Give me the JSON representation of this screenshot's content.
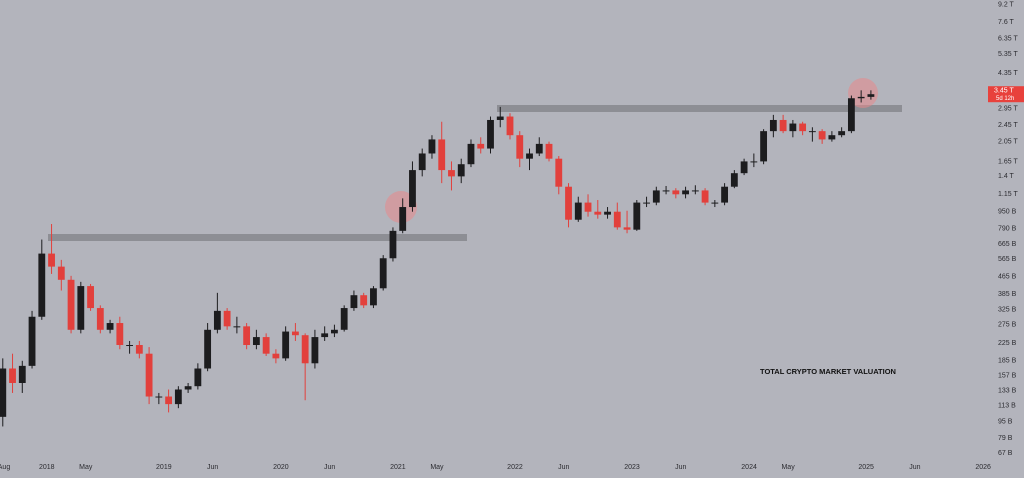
{
  "chart_data": {
    "type": "candlestick",
    "annotation": "TOTAL CRYPTO MARKET VALUATION",
    "up_color": "#1c1c1e",
    "down_color": "#e2403c",
    "log_scale": true,
    "x": [
      "2017-08",
      "2017-09",
      "2017-10",
      "2017-11",
      "2017-12",
      "2018-01",
      "2018-02",
      "2018-03",
      "2018-04",
      "2018-05",
      "2018-06",
      "2018-07",
      "2018-08",
      "2018-09",
      "2018-10",
      "2018-11",
      "2018-12",
      "2019-01",
      "2019-02",
      "2019-03",
      "2019-04",
      "2019-05",
      "2019-06",
      "2019-07",
      "2019-08",
      "2019-09",
      "2019-10",
      "2019-11",
      "2019-12",
      "2020-01",
      "2020-02",
      "2020-03",
      "2020-04",
      "2020-05",
      "2020-06",
      "2020-07",
      "2020-08",
      "2020-09",
      "2020-10",
      "2020-11",
      "2020-12",
      "2021-01",
      "2021-02",
      "2021-03",
      "2021-04",
      "2021-05",
      "2021-06",
      "2021-07",
      "2021-08",
      "2021-09",
      "2021-10",
      "2021-11",
      "2021-12",
      "2022-01",
      "2022-02",
      "2022-03",
      "2022-04",
      "2022-05",
      "2022-06",
      "2022-07",
      "2022-08",
      "2022-09",
      "2022-10",
      "2022-11",
      "2022-12",
      "2023-01",
      "2023-02",
      "2023-03",
      "2023-04",
      "2023-05",
      "2023-06",
      "2023-07",
      "2023-08",
      "2023-09",
      "2023-10",
      "2023-11",
      "2023-12",
      "2024-01",
      "2024-02",
      "2024-03",
      "2024-04",
      "2024-05",
      "2024-06",
      "2024-07",
      "2024-08",
      "2024-09",
      "2024-10",
      "2024-11",
      "2024-12",
      "2025-01"
    ],
    "open": [
      100,
      170,
      145,
      175,
      300,
      600,
      520,
      450,
      260,
      420,
      330,
      260,
      280,
      220,
      220,
      200,
      125,
      125,
      115,
      135,
      140,
      170,
      260,
      320,
      270,
      270,
      220,
      240,
      200,
      190,
      255,
      245,
      180,
      240,
      250,
      260,
      330,
      380,
      340,
      410,
      570,
      770,
      1000,
      1500,
      1800,
      2100,
      1500,
      1400,
      1600,
      2000,
      1900,
      2600,
      2700,
      2200,
      1700,
      1800,
      2000,
      1700,
      1250,
      870,
      1050,
      950,
      920,
      950,
      800,
      780,
      1050,
      1050,
      1200,
      1200,
      1150,
      1200,
      1200,
      1050,
      1050,
      1250,
      1450,
      1650,
      1650,
      2300,
      2600,
      2300,
      2500,
      2300,
      2300,
      2100,
      2200,
      2300,
      3300,
      3350
    ],
    "high": [
      190,
      200,
      185,
      320,
      700,
      830,
      560,
      470,
      440,
      430,
      340,
      290,
      300,
      230,
      230,
      215,
      130,
      135,
      140,
      145,
      180,
      280,
      390,
      330,
      300,
      280,
      260,
      250,
      210,
      270,
      280,
      250,
      260,
      270,
      275,
      340,
      400,
      390,
      420,
      590,
      800,
      1100,
      1650,
      1900,
      2200,
      2550,
      1650,
      1700,
      2100,
      2150,
      2700,
      3000,
      2800,
      2300,
      1900,
      2150,
      2050,
      1750,
      1300,
      1120,
      1150,
      1080,
      1000,
      1050,
      960,
      1080,
      1120,
      1250,
      1260,
      1230,
      1250,
      1270,
      1230,
      1080,
      1300,
      1500,
      1700,
      1800,
      2350,
      2750,
      2750,
      2600,
      2550,
      2400,
      2350,
      2300,
      2400,
      3400,
      3600,
      3600
    ],
    "low": [
      90,
      130,
      130,
      170,
      290,
      480,
      400,
      250,
      250,
      320,
      250,
      250,
      210,
      200,
      190,
      115,
      115,
      105,
      110,
      130,
      135,
      165,
      250,
      260,
      250,
      210,
      210,
      195,
      180,
      185,
      230,
      120,
      170,
      230,
      240,
      255,
      320,
      330,
      330,
      400,
      550,
      750,
      950,
      1400,
      1700,
      1300,
      1200,
      1300,
      1550,
      1800,
      1800,
      2400,
      2100,
      1550,
      1500,
      1750,
      1650,
      1150,
      800,
      850,
      900,
      880,
      880,
      780,
      750,
      770,
      1000,
      1020,
      1150,
      1100,
      1100,
      1150,
      1020,
      1000,
      1020,
      1230,
      1420,
      1550,
      1600,
      2150,
      2250,
      2150,
      2200,
      2050,
      2000,
      2050,
      2150,
      2250,
      3150,
      3250
    ],
    "close": [
      170,
      145,
      175,
      300,
      600,
      520,
      450,
      260,
      420,
      330,
      260,
      280,
      220,
      220,
      200,
      125,
      125,
      115,
      135,
      140,
      170,
      260,
      320,
      270,
      270,
      220,
      240,
      200,
      190,
      255,
      245,
      180,
      240,
      250,
      260,
      330,
      380,
      340,
      410,
      570,
      770,
      1000,
      1500,
      1800,
      2100,
      1500,
      1400,
      1600,
      2000,
      1900,
      2600,
      2700,
      2200,
      1700,
      1800,
      2000,
      1700,
      1250,
      870,
      1050,
      950,
      920,
      950,
      800,
      780,
      1050,
      1050,
      1200,
      1200,
      1150,
      1200,
      1200,
      1050,
      1050,
      1250,
      1450,
      1650,
      1650,
      2300,
      2600,
      2300,
      2500,
      2300,
      2300,
      2100,
      2200,
      2300,
      3300,
      3350,
      3450
    ],
    "xlim": [
      "2017-08",
      "2026-03"
    ],
    "xticks": [
      {
        "value": "2017-08",
        "label": "Aug"
      },
      {
        "value": "2018-01",
        "label": "2018"
      },
      {
        "value": "2018-05",
        "label": "May"
      },
      {
        "value": "2019-01",
        "label": "2019"
      },
      {
        "value": "2019-06",
        "label": "Jun"
      },
      {
        "value": "2020-01",
        "label": "2020"
      },
      {
        "value": "2020-06",
        "label": "Jun"
      },
      {
        "value": "2021-01",
        "label": "2021"
      },
      {
        "value": "2021-05",
        "label": "May"
      },
      {
        "value": "2022-01",
        "label": "2022"
      },
      {
        "value": "2022-06",
        "label": "Jun"
      },
      {
        "value": "2023-01",
        "label": "2023"
      },
      {
        "value": "2023-06",
        "label": "Jun"
      },
      {
        "value": "2024-01",
        "label": "2024"
      },
      {
        "value": "2024-05",
        "label": "May"
      },
      {
        "value": "2025-01",
        "label": "2025"
      },
      {
        "value": "2025-06",
        "label": "Jun"
      },
      {
        "value": "2026-01",
        "label": "2026"
      }
    ],
    "ylim": [
      54,
      9700
    ],
    "yticks": [
      {
        "value": 9200,
        "label": "9.2 T"
      },
      {
        "value": 7600,
        "label": "7.6 T"
      },
      {
        "value": 6350,
        "label": "6.35 T"
      },
      {
        "value": 5350,
        "label": "5.35 T"
      },
      {
        "value": 4350,
        "label": "4.35 T"
      },
      {
        "value": 2950,
        "label": "2.95 T"
      },
      {
        "value": 2450,
        "label": "2.45 T"
      },
      {
        "value": 2050,
        "label": "2.05 T"
      },
      {
        "value": 1650,
        "label": "1.65 T"
      },
      {
        "value": 1400,
        "label": "1.4 T"
      },
      {
        "value": 1150,
        "label": "1.15 T"
      },
      {
        "value": 950,
        "label": "950 B"
      },
      {
        "value": 790,
        "label": "790 B"
      },
      {
        "value": 665,
        "label": "665 B"
      },
      {
        "value": 565,
        "label": "565 B"
      },
      {
        "value": 465,
        "label": "465 B"
      },
      {
        "value": 385,
        "label": "385 B"
      },
      {
        "value": 325,
        "label": "325 B"
      },
      {
        "value": 275,
        "label": "275 B"
      },
      {
        "value": 225,
        "label": "225 B"
      },
      {
        "value": 185,
        "label": "185 B"
      },
      {
        "value": 157,
        "label": "157 B"
      },
      {
        "value": 133,
        "label": "133 B"
      },
      {
        "value": 113,
        "label": "113 B"
      },
      {
        "value": 95,
        "label": "95 B"
      },
      {
        "value": 79,
        "label": "79 B"
      },
      {
        "value": 67,
        "label": "67 B"
      }
    ],
    "price_label": {
      "value": 3450,
      "label": "3.45 T"
    },
    "countdown": "5d 12h"
  }
}
